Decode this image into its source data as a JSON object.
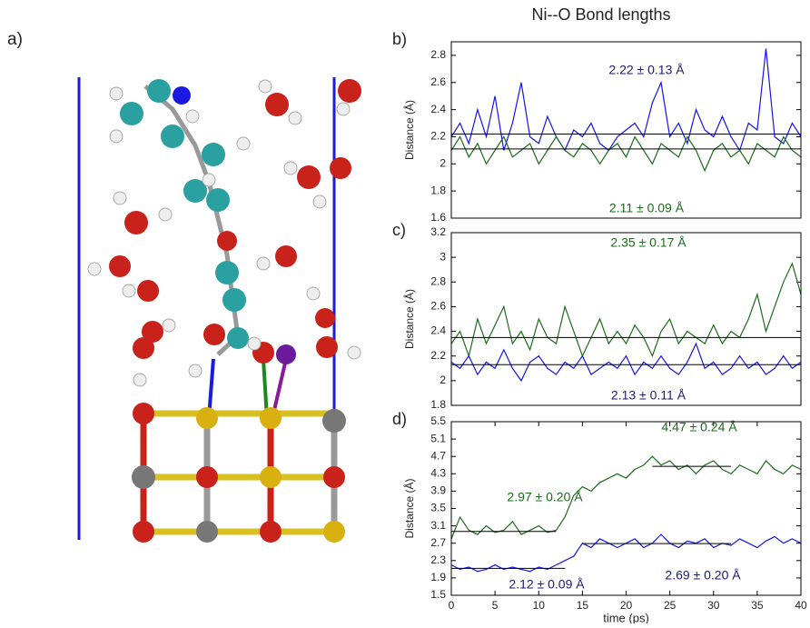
{
  "title": "Ni--O Bond lengths",
  "image_panel": {
    "label": "a)"
  },
  "chart_data": [
    {
      "type": "line",
      "panel_label": "b)",
      "ylabel": "Distance (Å)",
      "x": [
        0,
        1,
        2,
        3,
        4,
        5,
        6,
        7,
        8,
        9,
        10,
        11,
        12,
        13,
        14,
        15,
        16,
        17,
        18,
        19,
        20,
        21,
        22,
        23,
        24,
        25,
        26,
        27,
        28,
        29,
        30,
        31,
        32,
        33,
        34,
        35,
        36,
        37,
        38,
        39,
        40
      ],
      "xlim": [
        0,
        40
      ],
      "ylim": [
        1.6,
        2.9
      ],
      "yticks": [
        1.6,
        1.8,
        2,
        2.2,
        2.4,
        2.6,
        2.8
      ],
      "series": [
        {
          "color": "#1414e6",
          "values": [
            2.2,
            2.3,
            2.15,
            2.4,
            2.2,
            2.5,
            2.1,
            2.3,
            2.6,
            2.2,
            2.15,
            2.35,
            2.2,
            2.1,
            2.25,
            2.2,
            2.3,
            2.15,
            2.1,
            2.2,
            2.25,
            2.3,
            2.2,
            2.45,
            2.6,
            2.2,
            2.3,
            2.15,
            2.4,
            2.25,
            2.2,
            2.35,
            2.2,
            2.1,
            2.3,
            2.25,
            2.85,
            2.2,
            2.15,
            2.3,
            2.2
          ]
        },
        {
          "color": "#1a6b1a",
          "values": [
            2.1,
            2.2,
            2.05,
            2.15,
            2.0,
            2.1,
            2.2,
            2.05,
            2.1,
            2.15,
            2.0,
            2.1,
            2.2,
            2.1,
            2.05,
            2.15,
            2.1,
            2.0,
            2.1,
            2.15,
            2.05,
            2.2,
            2.1,
            2.0,
            2.15,
            2.1,
            2.05,
            2.2,
            2.1,
            1.95,
            2.1,
            2.15,
            2.05,
            2.1,
            2.0,
            2.15,
            2.1,
            2.05,
            2.2,
            2.1,
            2.05
          ]
        }
      ],
      "mean_lines": [
        {
          "x": [
            0,
            40
          ],
          "y": 2.22
        },
        {
          "x": [
            0,
            40
          ],
          "y": 2.11
        }
      ],
      "annotations": [
        {
          "text": "2.22 ± 0.13 Å",
          "color": "#1a1a6e"
        },
        {
          "text": "2.11 ± 0.09 Å",
          "color": "#1a6b1a"
        }
      ]
    },
    {
      "type": "line",
      "panel_label": "c)",
      "ylabel": "Distance (Å)",
      "x": [
        0,
        1,
        2,
        3,
        4,
        5,
        6,
        7,
        8,
        9,
        10,
        11,
        12,
        13,
        14,
        15,
        16,
        17,
        18,
        19,
        20,
        21,
        22,
        23,
        24,
        25,
        26,
        27,
        28,
        29,
        30,
        31,
        32,
        33,
        34,
        35,
        36,
        37,
        38,
        39,
        40
      ],
      "xlim": [
        0,
        40
      ],
      "ylim": [
        1.8,
        3.2
      ],
      "yticks": [
        1.8,
        2,
        2.2,
        2.4,
        2.6,
        2.8,
        3,
        3.2
      ],
      "series": [
        {
          "color": "#1a6b1a",
          "values": [
            2.3,
            2.4,
            2.2,
            2.5,
            2.3,
            2.45,
            2.6,
            2.3,
            2.4,
            2.25,
            2.5,
            2.35,
            2.3,
            2.6,
            2.4,
            2.2,
            2.35,
            2.5,
            2.3,
            2.4,
            2.3,
            2.45,
            2.35,
            2.2,
            2.4,
            2.5,
            2.3,
            2.4,
            2.35,
            2.3,
            2.45,
            2.3,
            2.4,
            2.35,
            2.5,
            2.7,
            2.4,
            2.6,
            2.8,
            2.95,
            2.7
          ]
        },
        {
          "color": "#1414e6",
          "values": [
            2.15,
            2.1,
            2.2,
            2.05,
            2.15,
            2.1,
            2.25,
            2.1,
            2.0,
            2.15,
            2.2,
            2.1,
            2.05,
            2.15,
            2.1,
            2.2,
            2.05,
            2.1,
            2.15,
            2.1,
            2.2,
            2.05,
            2.15,
            2.1,
            2.2,
            2.1,
            2.05,
            2.15,
            2.3,
            2.1,
            2.15,
            2.05,
            2.1,
            2.2,
            2.1,
            2.15,
            2.05,
            2.1,
            2.2,
            2.1,
            2.15
          ]
        }
      ],
      "mean_lines": [
        {
          "x": [
            0,
            40
          ],
          "y": 2.35
        },
        {
          "x": [
            0,
            40
          ],
          "y": 2.13
        }
      ],
      "annotations": [
        {
          "text": "2.35 ± 0.17 Å",
          "color": "#1a6b1a"
        },
        {
          "text": "2.13 ± 0.11 Å",
          "color": "#1a1a6e"
        }
      ]
    },
    {
      "type": "line",
      "panel_label": "d)",
      "ylabel": "Distance (Å)",
      "xlabel": "time (ps)",
      "x": [
        0,
        1,
        2,
        3,
        4,
        5,
        6,
        7,
        8,
        9,
        10,
        11,
        12,
        13,
        14,
        15,
        16,
        17,
        18,
        19,
        20,
        21,
        22,
        23,
        24,
        25,
        26,
        27,
        28,
        29,
        30,
        31,
        32,
        33,
        34,
        35,
        36,
        37,
        38,
        39,
        40
      ],
      "xlim": [
        0,
        40
      ],
      "xticks": [
        0,
        5,
        10,
        15,
        20,
        25,
        30,
        35,
        40
      ],
      "ylim": [
        1.5,
        5.5
      ],
      "yticks": [
        1.5,
        1.9,
        2.3,
        2.7,
        3.1,
        3.5,
        3.9,
        4.3,
        4.7,
        5.1,
        5.5
      ],
      "series": [
        {
          "color": "#1a6b1a",
          "values": [
            2.8,
            3.3,
            3.0,
            2.9,
            3.1,
            2.95,
            3.0,
            3.2,
            2.9,
            3.0,
            3.1,
            2.95,
            3.0,
            3.3,
            3.8,
            4.0,
            3.9,
            4.1,
            4.2,
            4.3,
            4.2,
            4.4,
            4.5,
            4.7,
            4.5,
            4.6,
            4.4,
            4.5,
            4.3,
            4.5,
            4.6,
            4.4,
            4.3,
            4.5,
            4.4,
            4.3,
            4.6,
            4.4,
            4.3,
            4.5,
            4.4
          ]
        },
        {
          "color": "#1414e6",
          "values": [
            2.2,
            2.1,
            2.15,
            2.05,
            2.1,
            2.2,
            2.1,
            2.15,
            2.1,
            2.05,
            2.15,
            2.1,
            2.2,
            2.3,
            2.4,
            2.7,
            2.6,
            2.8,
            2.7,
            2.6,
            2.7,
            2.8,
            2.6,
            2.7,
            2.9,
            2.7,
            2.6,
            2.75,
            2.7,
            2.8,
            2.6,
            2.7,
            2.65,
            2.8,
            2.7,
            2.6,
            2.75,
            2.85,
            2.7,
            2.8,
            2.7
          ]
        }
      ],
      "mean_lines": [
        {
          "x": [
            0,
            12
          ],
          "y": 2.97
        },
        {
          "x": [
            23,
            32
          ],
          "y": 4.47
        },
        {
          "x": [
            0,
            13
          ],
          "y": 2.12
        },
        {
          "x": [
            15,
            32
          ],
          "y": 2.69
        }
      ],
      "annotations": [
        {
          "text": "4.47 ± 0.24 Å",
          "color": "#1a6b1a"
        },
        {
          "text": "2.97 ± 0.20 Å",
          "color": "#1a6b1a"
        },
        {
          "text": "2.12 ± 0.09 Å",
          "color": "#1a1a6e"
        },
        {
          "text": "2.69 ± 0.20 Å",
          "color": "#1a1a6e"
        }
      ]
    }
  ]
}
